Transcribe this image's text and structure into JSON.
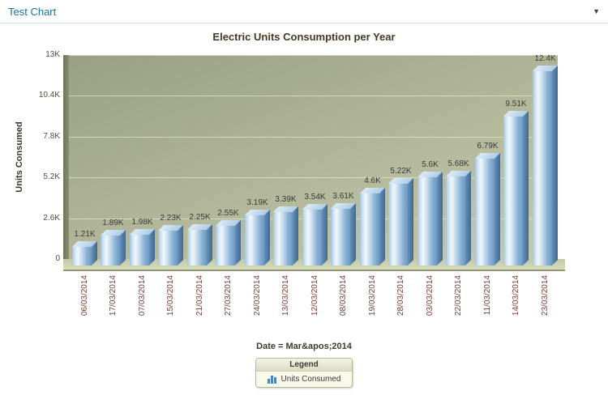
{
  "header": {
    "title": "Test Chart",
    "collapse_caret": "▼"
  },
  "chart_data": {
    "type": "bar",
    "title": "Electric Units Consumption per Year",
    "xlabel": "Date = Mar&apos;2014",
    "ylabel": "Units Consumed",
    "ylim": [
      0,
      13000
    ],
    "grid": true,
    "legend_position": "bottom",
    "yticks": [
      {
        "value": 0,
        "label": "0"
      },
      {
        "value": 2600,
        "label": "2.6K"
      },
      {
        "value": 5200,
        "label": "5.2K"
      },
      {
        "value": 7800,
        "label": "7.8K"
      },
      {
        "value": 10400,
        "label": "10.4K"
      },
      {
        "value": 13000,
        "label": "13K"
      }
    ],
    "categories": [
      "06/03/2014",
      "17/03/2014",
      "07/03/2014",
      "15/03/2014",
      "21/03/2014",
      "27/03/2014",
      "24/03/2014",
      "13/03/2014",
      "12/03/2014",
      "08/03/2014",
      "19/03/2014",
      "28/03/2014",
      "03/03/2014",
      "22/03/2014",
      "11/03/2014",
      "14/03/2014",
      "23/03/2014"
    ],
    "values": [
      1210,
      1890,
      1980,
      2230,
      2250,
      2550,
      3190,
      3390,
      3540,
      3610,
      4600,
      5220,
      5600,
      5680,
      6790,
      9510,
      12400
    ],
    "value_labels": [
      "1.21K",
      "1.89K",
      "1.98K",
      "2.23K",
      "2.25K",
      "2.55K",
      "3.19K",
      "3.39K",
      "3.54K",
      "3.61K",
      "4.6K",
      "5.22K",
      "5.6K",
      "5.68K",
      "6.79K",
      "9.51K",
      "12.4K"
    ],
    "legend": {
      "title": "Legend",
      "items": [
        {
          "label": "Units Consumed",
          "color": "#4d87bd"
        }
      ]
    },
    "colors": {
      "plot_bg_top": "#99a083",
      "plot_bg_bottom": "#c6cbad",
      "bar_light": "#f0f7fc",
      "bar_mid": "#86afd3",
      "bar_dark": "#44688c",
      "x_label": "#7a3b2e",
      "link": "#17739e"
    }
  }
}
